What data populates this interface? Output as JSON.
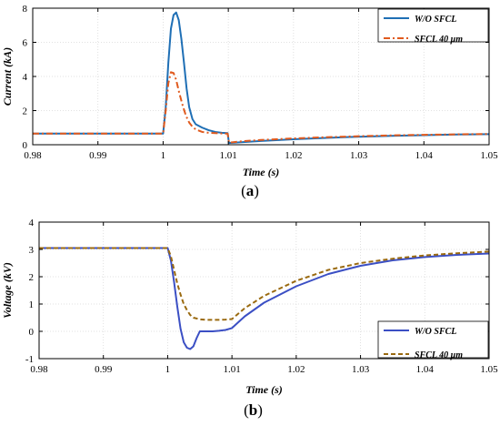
{
  "chart_data": [
    {
      "type": "line",
      "title": "",
      "xlabel": "Time (s)",
      "ylabel": "Current (kA)",
      "xlim": [
        0.98,
        1.05
      ],
      "ylim": [
        0,
        8
      ],
      "xticks": [
        "0.98",
        "0.99",
        "1",
        "1.01",
        "1.02",
        "1.03",
        "1.04",
        "1.05"
      ],
      "yticks": [
        "0",
        "2",
        "4",
        "6",
        "8"
      ],
      "grid": true,
      "legend": "top-right",
      "panel_label": "a",
      "series": [
        {
          "name": "W/O SFCL",
          "color": "#1f6fb5",
          "style": "solid",
          "x": [
            0.98,
            1.0,
            1.0004,
            1.0008,
            1.0012,
            1.0016,
            1.002,
            1.0024,
            1.0028,
            1.0032,
            1.0036,
            1.004,
            1.0045,
            1.005,
            1.006,
            1.007,
            1.008,
            1.009,
            1.0099,
            1.0101,
            1.012,
            1.015,
            1.02,
            1.025,
            1.03,
            1.035,
            1.04,
            1.045,
            1.05
          ],
          "y": [
            0.65,
            0.65,
            2.2,
            4.8,
            6.8,
            7.6,
            7.75,
            7.3,
            6.2,
            4.8,
            3.3,
            2.2,
            1.5,
            1.2,
            1.0,
            0.85,
            0.75,
            0.7,
            0.68,
            0.1,
            0.15,
            0.22,
            0.32,
            0.4,
            0.47,
            0.52,
            0.56,
            0.6,
            0.62
          ]
        },
        {
          "name": "SFCL 40 μm",
          "color": "#e05a1e",
          "style": "dashdot",
          "x": [
            0.98,
            1.0,
            1.0004,
            1.0008,
            1.0012,
            1.0016,
            1.002,
            1.0025,
            1.003,
            1.0035,
            1.004,
            1.0045,
            1.005,
            1.006,
            1.007,
            1.008,
            1.009,
            1.0099,
            1.0101,
            1.012,
            1.015,
            1.02,
            1.025,
            1.03,
            1.035,
            1.04,
            1.045,
            1.05
          ],
          "y": [
            0.65,
            0.65,
            2.0,
            3.6,
            4.25,
            4.2,
            3.8,
            3.0,
            2.3,
            1.7,
            1.3,
            1.05,
            0.9,
            0.75,
            0.7,
            0.68,
            0.66,
            0.65,
            0.12,
            0.2,
            0.28,
            0.37,
            0.44,
            0.5,
            0.55,
            0.58,
            0.61,
            0.63
          ]
        }
      ]
    },
    {
      "type": "line",
      "title": "",
      "xlabel": "Time (s)",
      "ylabel": "Voltage (kV)",
      "xlim": [
        0.98,
        1.05
      ],
      "ylim": [
        -1,
        4
      ],
      "xticks": [
        "0.98",
        "0.99",
        "1",
        "1.01",
        "1.02",
        "1.03",
        "1.04",
        "1.05"
      ],
      "yticks": [
        "-1",
        "0",
        "1",
        "2",
        "3",
        "4"
      ],
      "grid": true,
      "legend": "bottom-right",
      "panel_label": "b",
      "series": [
        {
          "name": "W/O SFCL",
          "color": "#3b4fc4",
          "style": "solid",
          "x": [
            0.98,
            1.0,
            1.0005,
            1.001,
            1.0015,
            1.002,
            1.0025,
            1.003,
            1.0035,
            1.004,
            1.0045,
            1.005,
            1.006,
            1.007,
            1.008,
            1.009,
            1.01,
            1.012,
            1.015,
            1.02,
            1.025,
            1.03,
            1.035,
            1.04,
            1.045,
            1.05
          ],
          "y": [
            3.05,
            3.05,
            2.6,
            1.8,
            0.9,
            0.1,
            -0.4,
            -0.6,
            -0.65,
            -0.55,
            -0.25,
            0.0,
            0.0,
            0.0,
            0.02,
            0.05,
            0.12,
            0.55,
            1.05,
            1.65,
            2.1,
            2.4,
            2.6,
            2.72,
            2.8,
            2.85
          ]
        },
        {
          "name": "SFCL 40 μm",
          "color": "#9a6a10",
          "style": "dashed",
          "x": [
            0.98,
            1.0,
            1.0005,
            1.001,
            1.0015,
            1.002,
            1.0025,
            1.003,
            1.0035,
            1.004,
            1.005,
            1.006,
            1.007,
            1.008,
            1.009,
            1.01,
            1.012,
            1.015,
            1.02,
            1.025,
            1.03,
            1.035,
            1.04,
            1.045,
            1.05
          ],
          "y": [
            3.05,
            3.05,
            2.75,
            2.25,
            1.75,
            1.35,
            1.0,
            0.78,
            0.6,
            0.5,
            0.44,
            0.42,
            0.42,
            0.42,
            0.43,
            0.45,
            0.85,
            1.3,
            1.85,
            2.25,
            2.5,
            2.66,
            2.78,
            2.86,
            2.92
          ]
        }
      ]
    }
  ]
}
